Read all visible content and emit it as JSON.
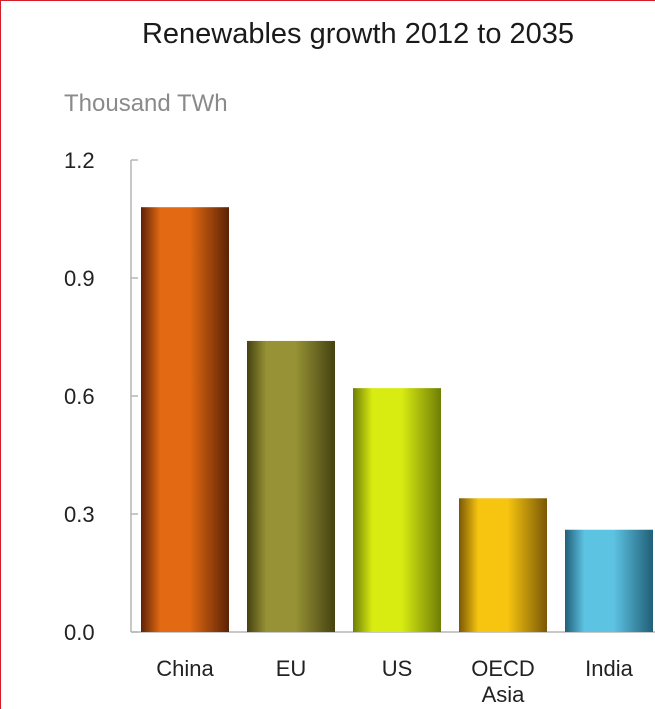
{
  "chart_data": {
    "type": "bar",
    "title": "Renewables growth 2012 to 2035",
    "ylabel": "Thousand TWh",
    "xlabel": "",
    "categories": [
      "China",
      "EU",
      "US",
      "OECD Asia",
      "India"
    ],
    "values": [
      1.08,
      0.74,
      0.62,
      0.34,
      0.26
    ],
    "ylim": [
      0,
      1.2
    ],
    "yticks": [
      "0.0",
      "0.3",
      "0.6",
      "0.9",
      "1.2"
    ],
    "grid": false,
    "bar_colors": [
      {
        "light": "#e36a12",
        "dark": "#5c2206"
      },
      {
        "light": "#979235",
        "dark": "#454211"
      },
      {
        "light": "#d8ec12",
        "dark": "#6f7e05"
      },
      {
        "light": "#f7c510",
        "dark": "#7a5806"
      },
      {
        "light": "#5dc3e3",
        "dark": "#215f78"
      }
    ],
    "accent_border_color": "#d21f2b"
  }
}
